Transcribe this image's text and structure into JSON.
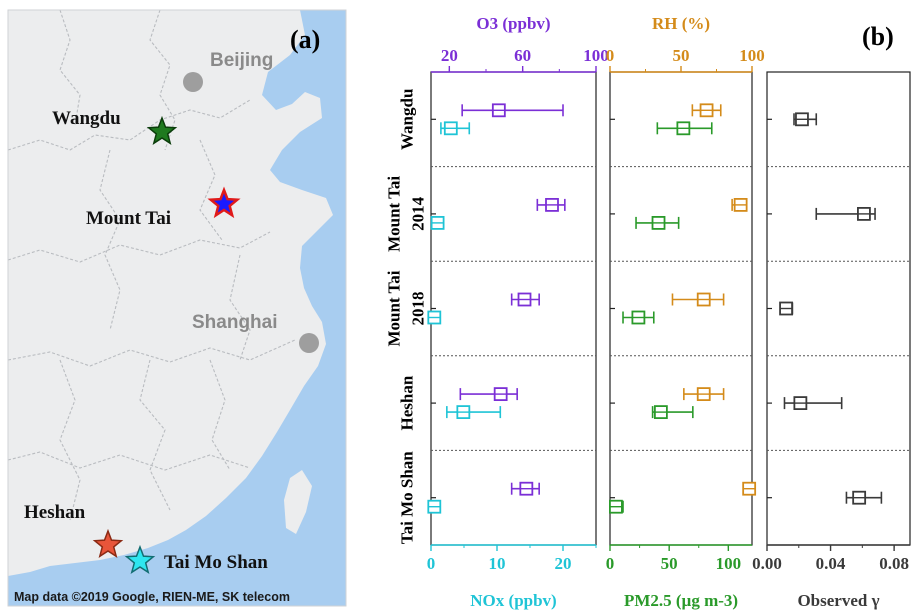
{
  "panel_a": {
    "label": "(a)",
    "attribution": "Map data ©2019 Google, RIEN-ME, SK telecom",
    "cities": [
      {
        "name": "Beijing",
        "label_color": "#8a8a8a",
        "marker": "circle",
        "marker_color": "#9e9e9e"
      },
      {
        "name": "Shanghai",
        "label_color": "#8a8a8a",
        "marker": "circle",
        "marker_color": "#9e9e9e"
      }
    ],
    "sites": [
      {
        "name": "Wangdu",
        "marker": "star",
        "color": "#1f7a1f",
        "edge": "#0b3d0b"
      },
      {
        "name": "Mount Tai",
        "marker": "star",
        "color": "#1a1aff",
        "edge": "#e01a1a"
      },
      {
        "name": "Heshan",
        "marker": "star",
        "color": "#e8553a",
        "edge": "#8a2a14"
      },
      {
        "name": "Tai Mo Shan",
        "marker": "star",
        "color": "#2ee6f0",
        "edge": "#136d72"
      }
    ],
    "colors": {
      "land": "#ecedee",
      "sea": "#a8cdf0",
      "border": "#b9bcc0"
    }
  },
  "panel_b": {
    "label": "(b)",
    "rows": [
      "Wangdu",
      "Mount Tai 2014",
      "Mount Tai 2018",
      "Heshan",
      "Tai Mo Shan"
    ],
    "row_labels": [
      {
        "lines": [
          "Wangdu"
        ]
      },
      {
        "lines": [
          "Mount Tai",
          "2014"
        ]
      },
      {
        "lines": [
          "Mount Tai",
          "2018"
        ]
      },
      {
        "lines": [
          "Heshan"
        ]
      },
      {
        "lines": [
          "Tai Mo Shan"
        ]
      }
    ],
    "colors": {
      "o3": "#7b2fd6",
      "nox": "#1fc4d6",
      "rh": "#d48b1a",
      "pm25": "#2a9a2a",
      "gamma": "#3a3a3a"
    }
  },
  "chart_data": [
    {
      "type": "scatter",
      "title": "",
      "xlabel": "O3 (ppbv)",
      "x_axis_position": "top",
      "xlim": [
        10,
        100
      ],
      "xticks": [
        20,
        60,
        100
      ],
      "series": [
        {
          "name": "O3",
          "points": [
            {
              "row": "Wangdu",
              "mean": 47,
              "low": 27,
              "high": 82
            },
            {
              "row": "Mount Tai 2014",
              "mean": 76,
              "low": 68,
              "high": 83
            },
            {
              "row": "Mount Tai 2018",
              "mean": 61,
              "low": 54,
              "high": 69
            },
            {
              "row": "Heshan",
              "mean": 48,
              "low": 26,
              "high": 57
            },
            {
              "row": "Tai Mo Shan",
              "mean": 62,
              "low": 54,
              "high": 69
            }
          ]
        }
      ]
    },
    {
      "type": "scatter",
      "title": "",
      "xlabel": "NOx (ppbv)",
      "x_axis_position": "bottom",
      "xlim": [
        0,
        25
      ],
      "xticks": [
        0,
        10,
        20
      ],
      "series": [
        {
          "name": "NOx",
          "points": [
            {
              "row": "Wangdu",
              "mean": 3.0,
              "low": 1.5,
              "high": 5.8
            },
            {
              "row": "Mount Tai 2014",
              "mean": 1.0,
              "low": 0.6,
              "high": 1.4
            },
            {
              "row": "Mount Tai 2018",
              "mean": 0.5,
              "low": 0.2,
              "high": 0.9
            },
            {
              "row": "Heshan",
              "mean": 4.9,
              "low": 2.4,
              "high": 10.5
            },
            {
              "row": "Tai Mo Shan",
              "mean": 0.5,
              "low": 0.2,
              "high": 0.8
            }
          ]
        }
      ]
    },
    {
      "type": "scatter",
      "title": "",
      "xlabel": "RH (%)",
      "x_axis_position": "top",
      "xlim": [
        0,
        100
      ],
      "xticks": [
        0,
        50,
        100
      ],
      "series": [
        {
          "name": "RH",
          "points": [
            {
              "row": "Wangdu",
              "mean": 68,
              "low": 58,
              "high": 78
            },
            {
              "row": "Mount Tai 2014",
              "mean": 92,
              "low": 86,
              "high": 96
            },
            {
              "row": "Mount Tai 2018",
              "mean": 66,
              "low": 44,
              "high": 80
            },
            {
              "row": "Heshan",
              "mean": 66,
              "low": 52,
              "high": 80
            },
            {
              "row": "Tai Mo Shan",
              "mean": 98,
              "low": 95,
              "high": 100
            }
          ]
        }
      ]
    },
    {
      "type": "scatter",
      "title": "",
      "xlabel": "PM2.5 (µg m-3)",
      "x_axis_position": "bottom",
      "xlim": [
        0,
        120
      ],
      "xticks": [
        0,
        50,
        100
      ],
      "series": [
        {
          "name": "PM2.5",
          "points": [
            {
              "row": "Wangdu",
              "mean": 62,
              "low": 40,
              "high": 86
            },
            {
              "row": "Mount Tai 2014",
              "mean": 41,
              "low": 22,
              "high": 58
            },
            {
              "row": "Mount Tai 2018",
              "mean": 24,
              "low": 11,
              "high": 37
            },
            {
              "row": "Heshan",
              "mean": 43,
              "low": 36,
              "high": 70
            },
            {
              "row": "Tai Mo Shan",
              "mean": 5,
              "low": 1,
              "high": 11
            }
          ]
        }
      ]
    },
    {
      "type": "scatter",
      "title": "",
      "xlabel": "Observed γ",
      "x_axis_position": "bottom",
      "xlim": [
        0.0,
        0.09
      ],
      "xticks": [
        0.0,
        0.04,
        0.08
      ],
      "series": [
        {
          "name": "γ",
          "points": [
            {
              "row": "Wangdu",
              "mean": 0.022,
              "low": 0.017,
              "high": 0.031
            },
            {
              "row": "Mount Tai 2014",
              "mean": 0.061,
              "low": 0.031,
              "high": 0.068
            },
            {
              "row": "Mount Tai 2018",
              "mean": 0.012,
              "low": 0.009,
              "high": 0.016
            },
            {
              "row": "Heshan",
              "mean": 0.021,
              "low": 0.011,
              "high": 0.047
            },
            {
              "row": "Tai Mo Shan",
              "mean": 0.058,
              "low": 0.05,
              "high": 0.072
            }
          ]
        }
      ]
    }
  ]
}
